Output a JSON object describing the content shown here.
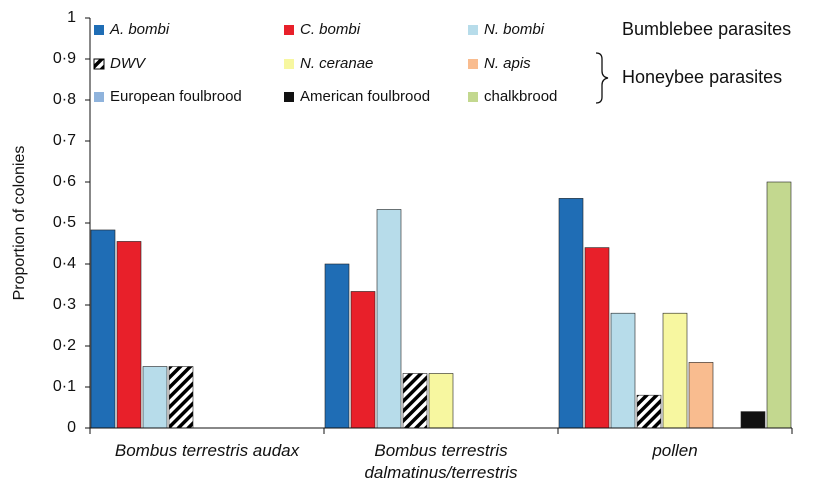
{
  "chart_data": {
    "type": "bar",
    "y_label": "Proportion of colonies",
    "categories": [
      "Bombus terrestris audax",
      "Bombus terrestris dalmatinus/terrestris",
      "pollen"
    ],
    "series": [
      {
        "name": "A. bombi",
        "color": "#1f6db5",
        "values": [
          0.483,
          0.4,
          0.56
        ]
      },
      {
        "name": "C. bombi",
        "color": "#e8202a",
        "values": [
          0.455,
          0.333,
          0.44
        ]
      },
      {
        "name": "N. bombi",
        "color": "#b7dcea",
        "values": [
          0.15,
          0.533,
          0.28
        ]
      },
      {
        "name": "DWV",
        "color": "#000000",
        "hatch": true,
        "values": [
          0.15,
          0.133,
          0.08
        ]
      },
      {
        "name": "N. ceranae",
        "color": "#f7f7a0",
        "values": [
          0,
          0.133,
          0.28
        ]
      },
      {
        "name": "N. apis",
        "color": "#f9bc8f",
        "values": [
          0,
          0,
          0.16
        ]
      },
      {
        "name": "European foulbrood",
        "color": "#8fb3dc",
        "values": [
          0,
          0,
          0
        ]
      },
      {
        "name": "American foulbrood",
        "color": "#111111",
        "values": [
          0,
          0,
          0.04
        ]
      },
      {
        "name": "chalkbrood",
        "color": "#c3d88f",
        "values": [
          0,
          0,
          0.6
        ]
      }
    ],
    "annotations": [
      "Bumblebee parasites",
      "Honeybee parasites"
    ],
    "ylim": [
      0,
      1
    ],
    "yticks": [
      0,
      {
        "value": 0.1,
        "label": "0·1"
      },
      {
        "value": 0.2,
        "label": "0·2"
      },
      {
        "value": 0.3,
        "label": "0·3"
      },
      {
        "value": 0.4,
        "label": "0·4"
      },
      {
        "value": 0.5,
        "label": "0·5"
      },
      {
        "value": 0.6,
        "label": "0·6"
      },
      {
        "value": 0.7,
        "label": "0·7"
      },
      {
        "value": 0.8,
        "label": "0·8"
      },
      {
        "value": 0.9,
        "label": "0·9"
      },
      1
    ],
    "grid": false
  }
}
